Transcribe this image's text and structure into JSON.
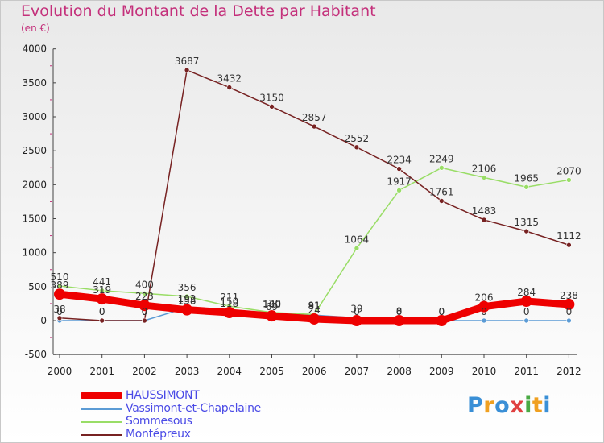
{
  "chart_data": {
    "type": "line",
    "title": "Evolution du Montant de la Dette par Habitant",
    "unit": "(en €)",
    "categories": [
      "2000",
      "2001",
      "2002",
      "2003",
      "2004",
      "2005",
      "2006",
      "2007",
      "2008",
      "2009",
      "2010",
      "2011",
      "2012"
    ],
    "ylim": [
      -500,
      4000
    ],
    "yticks": [
      -500,
      0,
      500,
      1000,
      1500,
      2000,
      2500,
      3000,
      3500,
      4000
    ],
    "series": [
      {
        "name": "HAUSSIMONT",
        "color": "#ee0000",
        "values": [
          389,
          319,
          223,
          158,
          118,
          69,
          24,
          0,
          0,
          0,
          206,
          284,
          238
        ]
      },
      {
        "name": "Vassimont-et-Chapelaine",
        "color": "#5b9bd5",
        "values": [
          0,
          0,
          0,
          192,
          150,
          100,
          81,
          39,
          8,
          0,
          0,
          0,
          0
        ]
      },
      {
        "name": "Sommesous",
        "color": "#99dd66",
        "values": [
          510,
          441,
          400,
          356,
          211,
          120,
          91,
          1064,
          1917,
          2249,
          2106,
          1965,
          2070
        ]
      },
      {
        "name": "Montépreux",
        "color": "#772222",
        "values": [
          38,
          0,
          0,
          3687,
          3432,
          3150,
          2857,
          2552,
          2234,
          1761,
          1483,
          1315,
          1112
        ]
      }
    ]
  },
  "logo": {
    "letters": [
      "P",
      "r",
      "o",
      "x",
      "i",
      "t",
      "i"
    ]
  }
}
